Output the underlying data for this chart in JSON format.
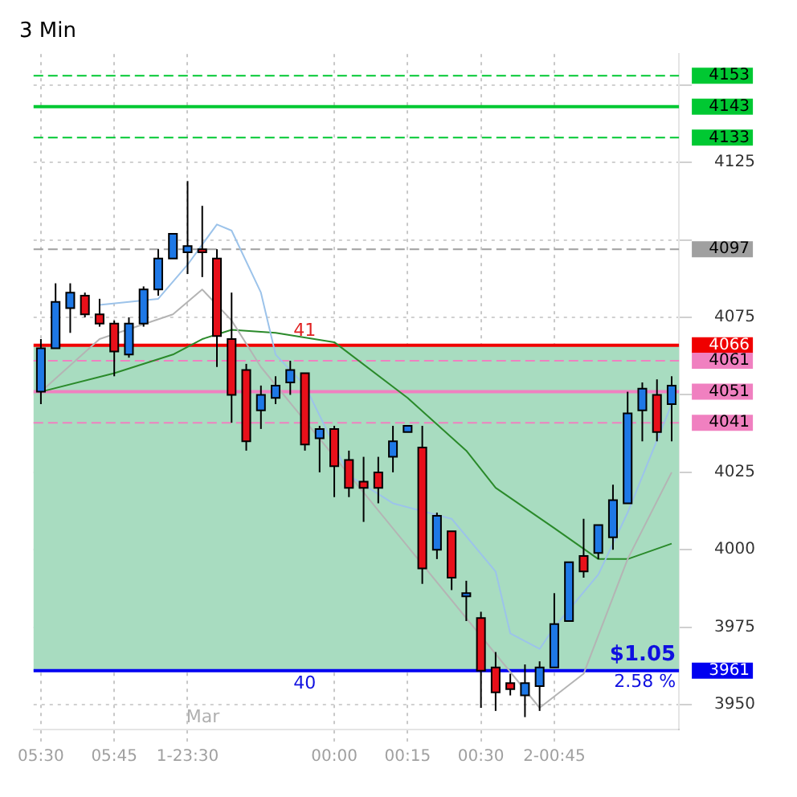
{
  "chart_data": {
    "type": "candlestick",
    "title": "3 Min",
    "categories": [
      "05:30",
      null,
      null,
      null,
      null,
      "05:45",
      null,
      null,
      null,
      null,
      "1-23:30",
      null,
      null,
      null,
      null,
      null,
      null,
      null,
      null,
      null,
      "00:00",
      null,
      null,
      null,
      null,
      "00:15",
      null,
      null,
      null,
      null,
      "00:30",
      null,
      null,
      null,
      null,
      "2-00:45",
      null,
      null,
      null,
      null,
      null,
      null,
      null,
      null
    ],
    "ohlc": [
      [
        4051,
        4068,
        4047,
        4065
      ],
      [
        4065,
        4086,
        4065,
        4080
      ],
      [
        4078,
        4086,
        4070,
        4083
      ],
      [
        4082,
        4083,
        4075,
        4076
      ],
      [
        4076,
        4081,
        4072,
        4073
      ],
      [
        4073,
        4074,
        4056,
        4064
      ],
      [
        4063,
        4075,
        4062,
        4073
      ],
      [
        4073,
        4085,
        4072,
        4084
      ],
      [
        4084,
        4097,
        4082,
        4094
      ],
      [
        4094,
        4102,
        4094,
        4102
      ],
      [
        4096,
        4119,
        4089,
        4098
      ],
      [
        4097,
        4111,
        4088,
        4096
      ],
      [
        4094,
        4097,
        4059,
        4069
      ],
      [
        4068,
        4083,
        4041,
        4050
      ],
      [
        4058,
        4060,
        4032,
        4035
      ],
      [
        4045,
        4053,
        4039,
        4050
      ],
      [
        4049,
        4056,
        4047,
        4053
      ],
      [
        4054,
        4061,
        4050,
        4058
      ],
      [
        4057,
        4057,
        4032,
        4034
      ],
      [
        4036,
        4040,
        4025,
        4039
      ],
      [
        4039,
        4040,
        4017,
        4027
      ],
      [
        4029,
        4032,
        4017,
        4020
      ],
      [
        4022,
        4030,
        4009,
        4020
      ],
      [
        4025,
        4030,
        4015,
        4020
      ],
      [
        4030,
        4040,
        4025,
        4035
      ],
      [
        4038,
        4040,
        4038,
        4040
      ],
      [
        4033,
        4040,
        3989,
        3994
      ],
      [
        4000,
        4012,
        3997,
        4011
      ],
      [
        4006,
        4006,
        3987,
        3991
      ],
      [
        3985,
        3990,
        3977,
        3986
      ],
      [
        3978,
        3980,
        3949,
        3961
      ],
      [
        3962,
        3967,
        3948,
        3954
      ],
      [
        3957,
        3960,
        3953,
        3955
      ],
      [
        3953,
        3963,
        3946,
        3957
      ],
      [
        3956,
        3964,
        3948,
        3962
      ],
      [
        3962,
        3986,
        3962,
        3976
      ],
      [
        3977,
        3996,
        3977,
        3996
      ],
      [
        3998,
        4010,
        3991,
        3993
      ],
      [
        3999,
        4008,
        3997,
        4008
      ],
      [
        4004,
        4021,
        4000,
        4016
      ],
      [
        4015,
        4051,
        4015,
        4044
      ],
      [
        4045,
        4054,
        4035,
        4052
      ],
      [
        4050,
        4055,
        4035,
        4038
      ],
      [
        4047,
        4056,
        4035,
        4053
      ]
    ],
    "colors": [
      "#1e78e6",
      "#1e78e6",
      "#1e78e6",
      "#e8101a",
      "#e8101a",
      "#e8101a",
      "#1e78e6",
      "#1e78e6",
      "#1e78e6",
      "#1e78e6",
      "#1e78e6",
      "#e8101a",
      "#e8101a",
      "#e8101a",
      "#e8101a",
      "#1e78e6",
      "#1e78e6",
      "#1e78e6",
      "#e8101a",
      "#1e78e6",
      "#e8101a",
      "#e8101a",
      "#e8101a",
      "#e8101a",
      "#1e78e6",
      "#1e78e6",
      "#e8101a",
      "#1e78e6",
      "#e8101a",
      "#1e78e6",
      "#e8101a",
      "#e8101a",
      "#e8101a",
      "#1e78e6",
      "#1e78e6",
      "#1e78e6",
      "#1e78e6",
      "#e8101a",
      "#1e78e6",
      "#1e78e6",
      "#1e78e6",
      "#1e78e6",
      "#e8101a",
      "#1e78e6"
    ],
    "series": [
      {
        "type": "line",
        "color": "#9cc3ea",
        "values": [
          null,
          null,
          null,
          null,
          4079,
          null,
          null,
          null,
          4081,
          null,
          4092,
          null,
          4105,
          4103,
          null,
          4083,
          4063,
          null,
          4053,
          null,
          null,
          4024,
          null,
          null,
          4015,
          null,
          null,
          null,
          4010,
          null,
          null,
          3993,
          3973,
          null,
          3968,
          3975,
          null,
          null,
          3992,
          null,
          4012,
          null,
          null,
          4047
        ]
      },
      {
        "type": "line",
        "color": "#b4b4b4",
        "values": [
          4051,
          null,
          null,
          null,
          4068,
          null,
          null,
          null,
          null,
          4076,
          null,
          4084,
          null,
          4074,
          null,
          4059,
          null,
          null,
          null,
          null,
          null,
          null,
          null,
          null,
          null,
          null,
          null,
          null,
          null,
          null,
          null,
          null,
          null,
          null,
          3949,
          null,
          null,
          3960,
          null,
          null,
          3997,
          null,
          null,
          4025
        ]
      },
      {
        "type": "line",
        "color": "#2a8a2a",
        "values": [
          4051,
          null,
          null,
          null,
          null,
          4057,
          null,
          null,
          null,
          4063,
          null,
          4068,
          null,
          4071,
          null,
          null,
          4070,
          null,
          null,
          null,
          4067,
          null,
          null,
          null,
          null,
          4049,
          null,
          null,
          null,
          4032,
          null,
          4020,
          null,
          null,
          null,
          4007,
          null,
          null,
          3997,
          null,
          3997,
          null,
          null,
          4002
        ]
      }
    ],
    "ylim": [
      3942,
      4160
    ],
    "yticks": [
      3950,
      3975,
      4000,
      4025,
      {
        "value": 4050,
        "label": null
      },
      4075,
      {
        "value": 4100,
        "label": null
      },
      4125,
      {
        "value": 4150,
        "label": null
      }
    ],
    "grid": true,
    "legend": false,
    "ref_lines": [
      {
        "axis": "y",
        "value": 4153,
        "color": "#00c832",
        "line_style": "dashed",
        "label": "4153"
      },
      {
        "axis": "y",
        "value": 4143,
        "color": "#00c832",
        "line_style": "solid",
        "label": "4143"
      },
      {
        "axis": "y",
        "value": 4133,
        "color": "#00c832",
        "line_style": "dashed",
        "label": "4133"
      },
      {
        "axis": "y",
        "value": 4097,
        "color": "#a0a0a0",
        "line_style": "dashed",
        "label": "4097"
      },
      {
        "axis": "y",
        "value": 4066,
        "color": "#f00000",
        "line_style": "solid",
        "label": "4066"
      },
      {
        "axis": "y",
        "value": 4061,
        "color": "#f080c0",
        "line_style": "dashed",
        "label": "4061"
      },
      {
        "axis": "y",
        "value": 4051,
        "color": "#f080c0",
        "line_style": "solid",
        "label": "4051"
      },
      {
        "axis": "y",
        "value": 4041,
        "color": "#f080c0",
        "line_style": "dashed",
        "label": "4041"
      },
      {
        "axis": "y",
        "value": 3961,
        "color": "#0000f0",
        "line_style": "solid",
        "label": "3961"
      }
    ],
    "bands": [
      {
        "axis": "y",
        "from": 3961,
        "to": 4066,
        "color": "#a8dcc0"
      }
    ],
    "annotations": [
      "Mar",
      {
        "text": "$1.05",
        "y": 3961
      },
      {
        "text": "2.58 %",
        "y": 3961
      },
      {
        "text": "41",
        "y": 4066
      },
      {
        "text": "40",
        "y": 3961
      }
    ]
  }
}
